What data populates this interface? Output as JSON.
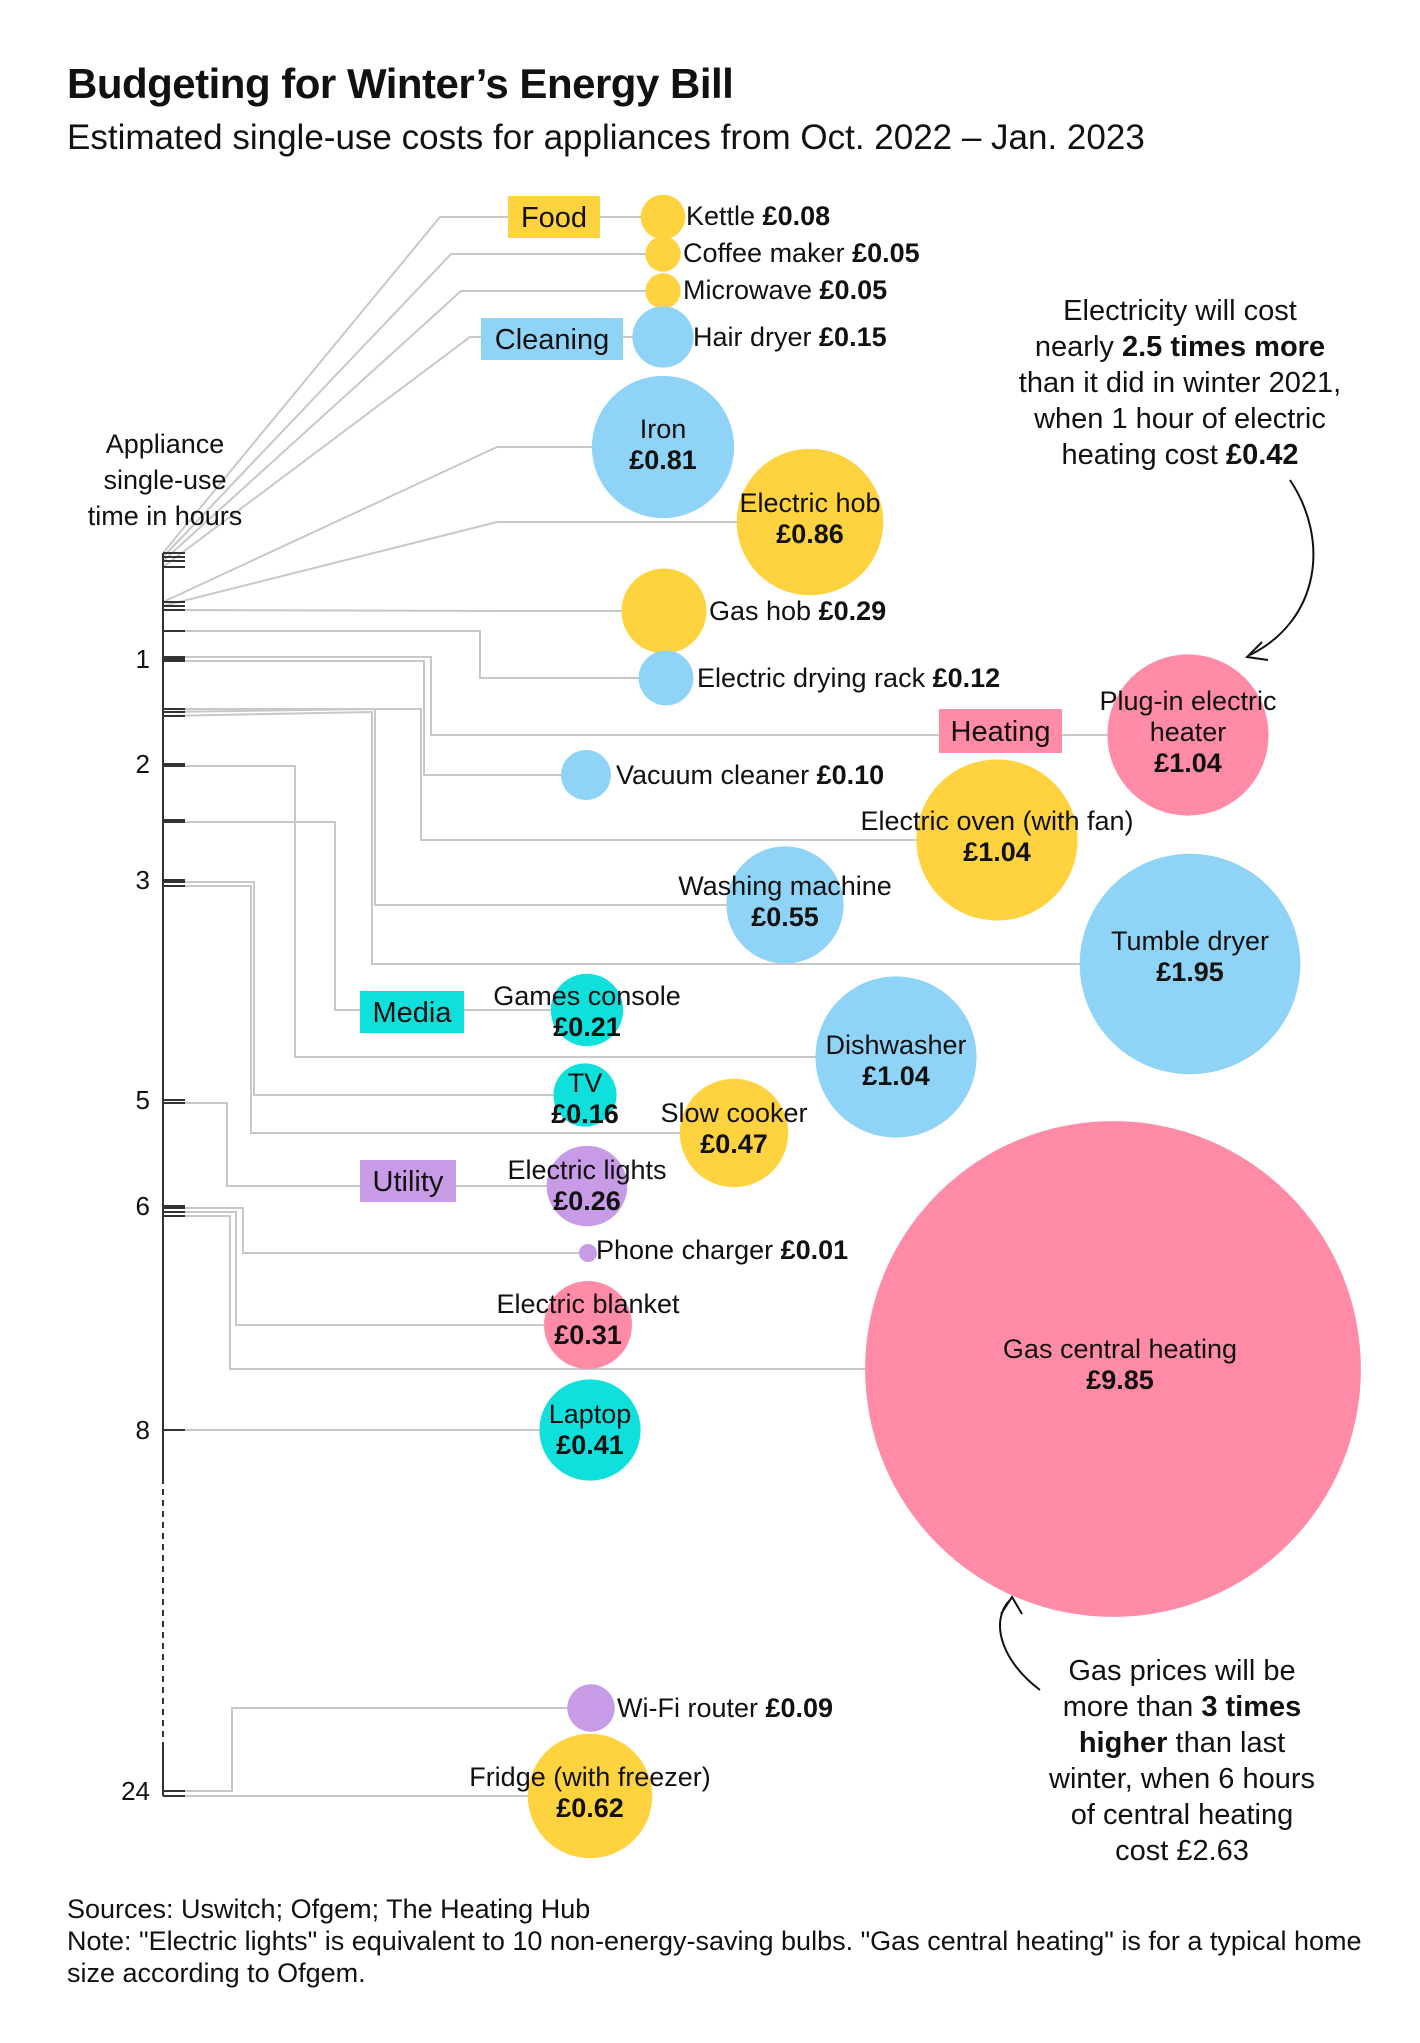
{
  "title": "Budgeting for Winter’s Energy Bill",
  "subtitle": "Estimated single-use costs for appliances from Oct. 2022 – Jan. 2023",
  "axis_title": [
    "Appliance",
    "single-use",
    "time in hours"
  ],
  "colors": {
    "Food": "#ffd23f",
    "Cleaning": "#8fd3f7",
    "Heating": "#ff8ba6",
    "Media": "#10e0dc",
    "Utility": "#c79be6",
    "line": "#c8c8c8",
    "axis": "#333333"
  },
  "category_labels": [
    {
      "name": "Food"
    },
    {
      "name": "Cleaning"
    },
    {
      "name": "Heating"
    },
    {
      "name": "Media"
    },
    {
      "name": "Utility"
    }
  ],
  "annotations": {
    "electricity": [
      "Electricity will cost",
      "nearly |2.5 times more|",
      "than it did in winter 2021,",
      "when 1 hour of electric",
      "heating cost |£0.42|"
    ],
    "gas": [
      "Gas prices will be",
      "more than |3 times|",
      "|higher| than last",
      "winter, when 6 hours",
      "of central heating",
      "cost £2.63"
    ]
  },
  "chart_data": {
    "type": "bubble",
    "y_axis": {
      "label": "Appliance single-use time in hours",
      "ticks": [
        "1",
        "2",
        "3",
        "5",
        "6",
        "8",
        "24"
      ],
      "axis_break": "between 8 and 24"
    },
    "size_encodes": "cost (£)",
    "series": [
      {
        "name": "Kettle",
        "category": "Food",
        "cost": 0.08,
        "cost_label": "£0.08",
        "hours": 0.05
      },
      {
        "name": "Coffee maker",
        "category": "Food",
        "cost": 0.05,
        "cost_label": "£0.05",
        "hours": 0.08
      },
      {
        "name": "Microwave",
        "category": "Food",
        "cost": 0.05,
        "cost_label": "£0.05",
        "hours": 0.1
      },
      {
        "name": "Hair dryer",
        "category": "Cleaning",
        "cost": 0.15,
        "cost_label": "£0.15",
        "hours": 0.17
      },
      {
        "name": "Iron",
        "category": "Cleaning",
        "cost": 0.81,
        "cost_label": "£0.81",
        "hours": 0.5
      },
      {
        "name": "Electric hob",
        "category": "Food",
        "cost": 0.86,
        "cost_label": "£0.86",
        "hours": 0.5
      },
      {
        "name": "Gas hob",
        "category": "Food",
        "cost": 0.29,
        "cost_label": "£0.29",
        "hours": 0.5
      },
      {
        "name": "Electric drying rack",
        "category": "Cleaning",
        "cost": 0.12,
        "cost_label": "£0.12",
        "hours": 1
      },
      {
        "name": "Plug-in electric heater",
        "category": "Heating",
        "cost": 1.04,
        "cost_label": "£1.04",
        "hours": 1
      },
      {
        "name": "Vacuum cleaner",
        "category": "Cleaning",
        "cost": 0.1,
        "cost_label": "£0.10",
        "hours": 1
      },
      {
        "name": "Electric oven (with fan)",
        "category": "Food",
        "cost": 1.04,
        "cost_label": "£1.04",
        "hours": 1.5
      },
      {
        "name": "Washing machine",
        "category": "Cleaning",
        "cost": 0.55,
        "cost_label": "£0.55",
        "hours": 1.5
      },
      {
        "name": "Tumble dryer",
        "category": "Cleaning",
        "cost": 1.95,
        "cost_label": "£1.95",
        "hours": 2.5
      },
      {
        "name": "Games console",
        "category": "Media",
        "cost": 0.21,
        "cost_label": "£0.21",
        "hours": 3
      },
      {
        "name": "Dishwasher",
        "category": "Cleaning",
        "cost": 1.04,
        "cost_label": "£1.04",
        "hours": 2
      },
      {
        "name": "TV",
        "category": "Media",
        "cost": 0.16,
        "cost_label": "£0.16",
        "hours": 3
      },
      {
        "name": "Slow cooker",
        "category": "Food",
        "cost": 0.47,
        "cost_label": "£0.47",
        "hours": 3
      },
      {
        "name": "Electric lights",
        "category": "Utility",
        "cost": 0.26,
        "cost_label": "£0.26",
        "hours": 5
      },
      {
        "name": "Phone charger",
        "category": "Utility",
        "cost": 0.01,
        "cost_label": "£0.01",
        "hours": 6
      },
      {
        "name": "Electric blanket",
        "category": "Heating",
        "cost": 0.31,
        "cost_label": "£0.31",
        "hours": 6
      },
      {
        "name": "Gas central heating",
        "category": "Heating",
        "cost": 9.85,
        "cost_label": "£9.85",
        "hours": 6
      },
      {
        "name": "Laptop",
        "category": "Media",
        "cost": 0.41,
        "cost_label": "£0.41",
        "hours": 8
      },
      {
        "name": "Wi-Fi router",
        "category": "Utility",
        "cost": 0.09,
        "cost_label": "£0.09",
        "hours": 24
      },
      {
        "name": "Fridge (with freezer)",
        "category": "Food",
        "cost": 0.62,
        "cost_label": "£0.62",
        "hours": 24
      }
    ]
  },
  "footer": {
    "sources": "Sources: Uswitch; Ofgem; The Heating Hub",
    "note": "Note: \"Electric lights\" is equivalent to 10 non-energy-saving bulbs. \"Gas central heating\" is for a typical home size according to Ofgem."
  }
}
